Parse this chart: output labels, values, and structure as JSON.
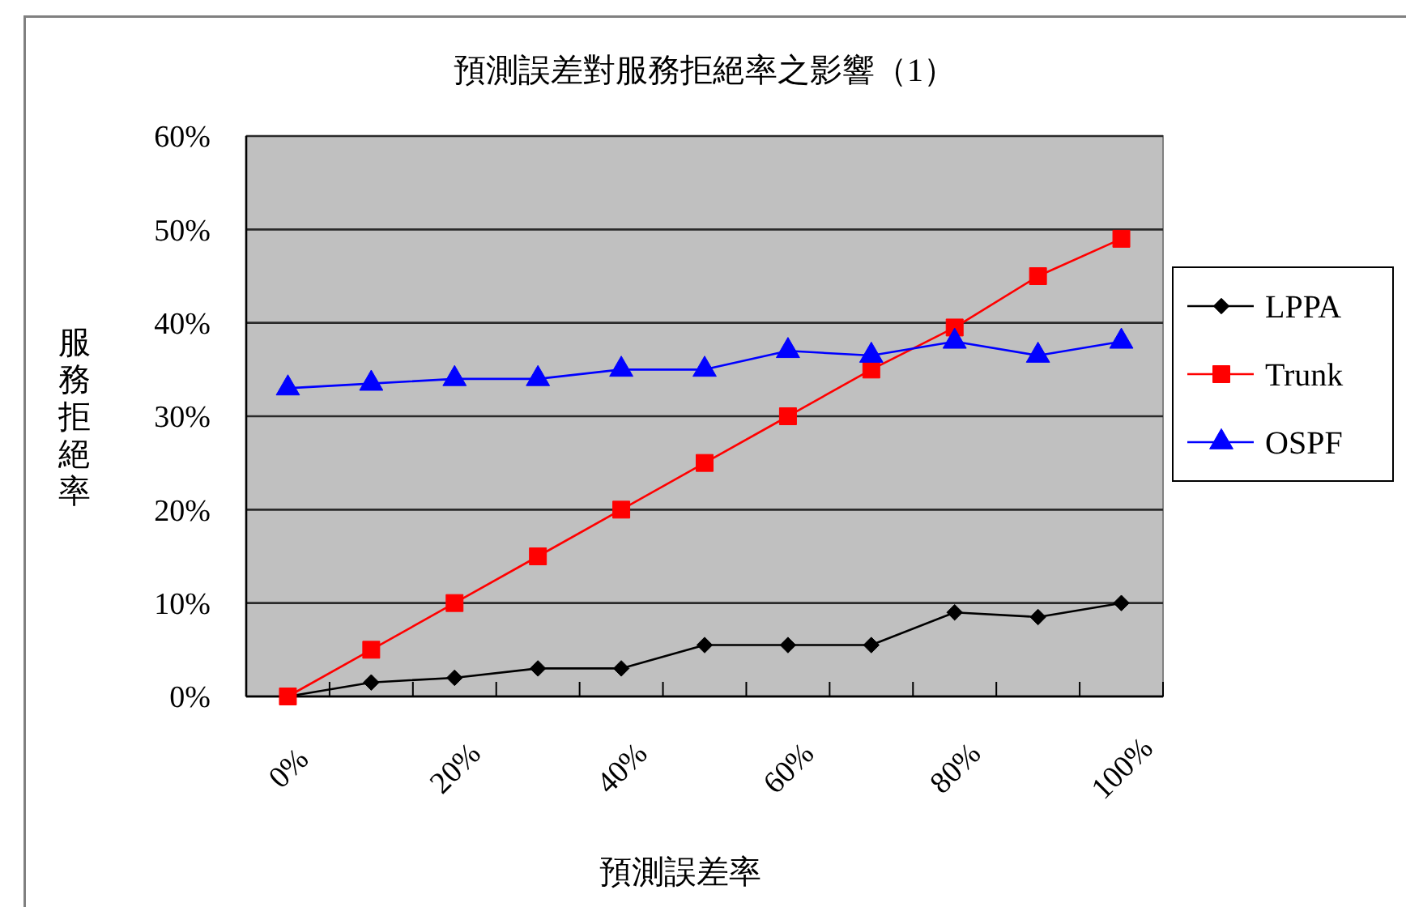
{
  "chart_data": {
    "type": "line",
    "title": "預測誤差對服務拒絕率之影響（1）",
    "xlabel": "預測誤差率",
    "ylabel": "服務拒絕率",
    "categories": [
      "0%",
      null,
      "20%",
      null,
      "40%",
      null,
      "60%",
      null,
      "80%",
      null,
      "100%"
    ],
    "series": [
      {
        "name": "LPPA",
        "color": "#000000",
        "marker": "diamond",
        "values": [
          0,
          1.5,
          2,
          3,
          3,
          5.5,
          5.5,
          5.5,
          9,
          8.5,
          10
        ]
      },
      {
        "name": "Trunk",
        "color": "#ff0000",
        "marker": "square",
        "values": [
          0,
          5,
          10,
          15,
          20,
          25,
          30,
          35,
          39.5,
          45,
          49
        ]
      },
      {
        "name": "OSPF",
        "color": "#0000ff",
        "marker": "triangle",
        "values": [
          33,
          33.5,
          34,
          34,
          35,
          35,
          37,
          36.5,
          38,
          36.5,
          38
        ]
      }
    ],
    "ylim": [
      0,
      60
    ],
    "yticks": [
      {
        "value": 0,
        "label": "0%"
      },
      {
        "value": 10,
        "label": "10%"
      },
      {
        "value": 20,
        "label": "20%"
      },
      {
        "value": 30,
        "label": "30%"
      },
      {
        "value": 40,
        "label": "40%"
      },
      {
        "value": 50,
        "label": "50%"
      },
      {
        "value": 60,
        "label": "60%"
      }
    ],
    "grid": "y",
    "legend": "right",
    "line_style": "solid"
  }
}
